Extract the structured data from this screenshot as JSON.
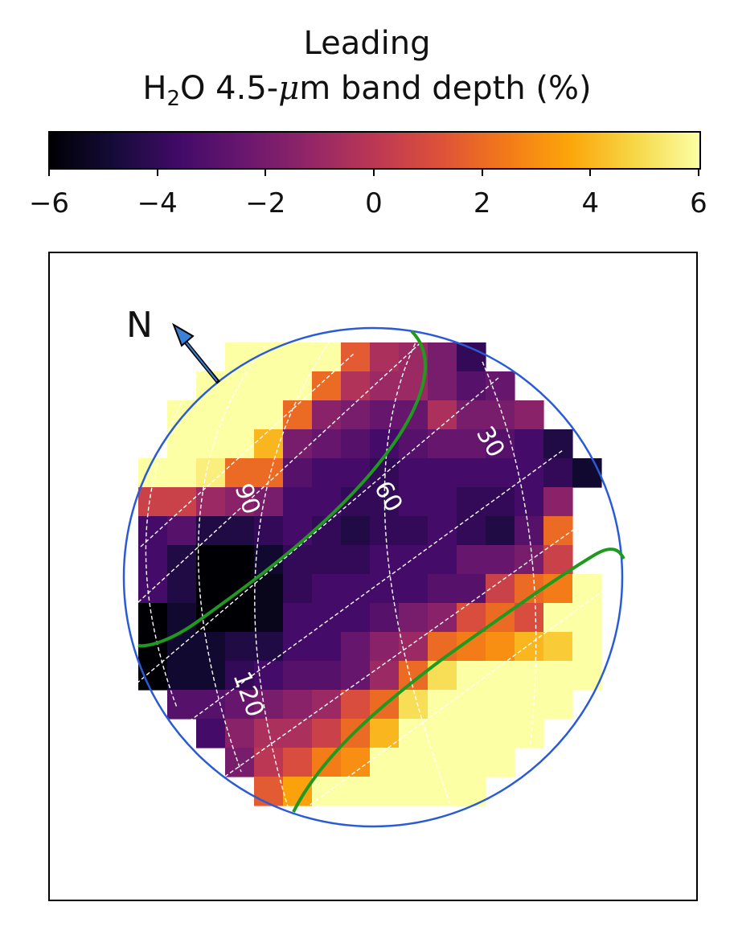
{
  "chart_data": {
    "type": "heatmap",
    "title": "Leading",
    "subtitle": {
      "prefix": "H",
      "subscript": "2",
      "rest_before_mu": "O 4.5-",
      "mu": "μ",
      "rest_after_mu": "m band depth (%)"
    },
    "colorbar": {
      "colormap": "inferno",
      "range": [
        -6,
        6
      ],
      "ticks": [
        -6,
        -4,
        -2,
        0,
        2,
        4,
        6
      ],
      "tick_labels": [
        "−6",
        "−4",
        "−2",
        "0",
        "2",
        "4",
        "6"
      ]
    },
    "grid": {
      "rows": 17,
      "cols": 17,
      "row_labels_note": "",
      "values": [
        [
          null,
          null,
          null,
          null,
          null,
          null,
          null,
          null,
          null,
          null,
          null,
          null,
          null,
          null,
          null,
          null,
          null
        ],
        [
          null,
          null,
          null,
          null,
          6,
          6,
          6,
          6,
          1.5,
          -0.5,
          -1,
          -2,
          -4,
          null,
          null,
          null,
          null
        ],
        [
          null,
          null,
          null,
          6,
          6,
          6,
          6,
          2,
          -0.3,
          -1,
          -1,
          -2,
          -3,
          -2.5,
          null,
          null,
          null
        ],
        [
          null,
          null,
          6,
          6,
          6,
          6,
          2,
          -1.5,
          -2,
          -2.5,
          -2.5,
          -0.5,
          -2,
          -2,
          -1.5,
          null,
          null
        ],
        [
          null,
          null,
          6,
          6,
          6,
          4,
          -2,
          -2.5,
          -3,
          -3.5,
          -3,
          -2.5,
          -2.5,
          -3,
          -3.5,
          -4.5,
          null
        ],
        [
          null,
          6,
          6,
          5.5,
          2,
          2,
          -3,
          -3.5,
          -3.5,
          -4,
          -3.5,
          -3.5,
          -3.5,
          -3.5,
          -3.5,
          -4,
          -5
        ],
        [
          null,
          0.5,
          0.5,
          -1,
          -1.5,
          -2,
          -3.5,
          -3.5,
          -4,
          -4,
          -3.5,
          -3.5,
          -4,
          -4,
          -3.5,
          -1.5,
          null
        ],
        [
          null,
          -3.5,
          -3,
          -4.5,
          -4.5,
          -4,
          -3.5,
          -4,
          -4.5,
          -4,
          -4,
          -3.5,
          -4,
          -4.5,
          -3,
          2,
          null
        ],
        [
          null,
          -3.5,
          -4.5,
          -6,
          -6,
          -5,
          -4,
          -4,
          -4,
          -3.5,
          -3.5,
          -3.5,
          -2.5,
          -2.5,
          -2,
          0.5,
          null
        ],
        [
          null,
          -3.5,
          -4.5,
          -6,
          -6,
          -5.5,
          -4,
          -3.5,
          -3.5,
          -3.5,
          -3.5,
          -3,
          -3,
          0.5,
          2,
          2.5,
          6
        ],
        [
          null,
          -6,
          -5,
          -6,
          -6,
          -5.5,
          -3.5,
          -3.5,
          -3.5,
          -3,
          -2,
          -1.5,
          1,
          2,
          1,
          6,
          6
        ],
        [
          null,
          -6,
          -5,
          -5,
          -4.5,
          -4.5,
          -3.5,
          -3.5,
          -2.5,
          -1.5,
          -1,
          2,
          2.5,
          3,
          4,
          4.5,
          6
        ],
        [
          null,
          -6,
          -5,
          -5,
          -4,
          -3.5,
          -3,
          -3,
          -2.5,
          -1,
          2,
          5,
          6,
          6,
          6,
          6,
          6
        ],
        [
          null,
          null,
          -3,
          -3,
          -2.5,
          -2,
          -1.5,
          -1,
          1,
          2,
          5,
          6,
          6,
          6,
          6,
          6,
          null
        ],
        [
          null,
          null,
          null,
          -3.5,
          -1.5,
          -0.5,
          -0.5,
          0.5,
          2,
          4,
          6,
          6,
          6,
          6,
          6,
          null,
          null
        ],
        [
          null,
          null,
          null,
          null,
          -2,
          0,
          1,
          2.5,
          3,
          6,
          6,
          6,
          6,
          6,
          null,
          null,
          null
        ],
        [
          null,
          null,
          null,
          null,
          null,
          1.5,
          3.5,
          6,
          6,
          6,
          6,
          6,
          6,
          null,
          null,
          null,
          null
        ]
      ]
    },
    "grid_line_labels": [
      "90",
      "60",
      "30",
      "120"
    ],
    "north_label": "N",
    "colors": {
      "disk_outline": "#2a5bd7",
      "terminator": "#1f9a1f",
      "grid_lines": "#ffffff"
    }
  }
}
